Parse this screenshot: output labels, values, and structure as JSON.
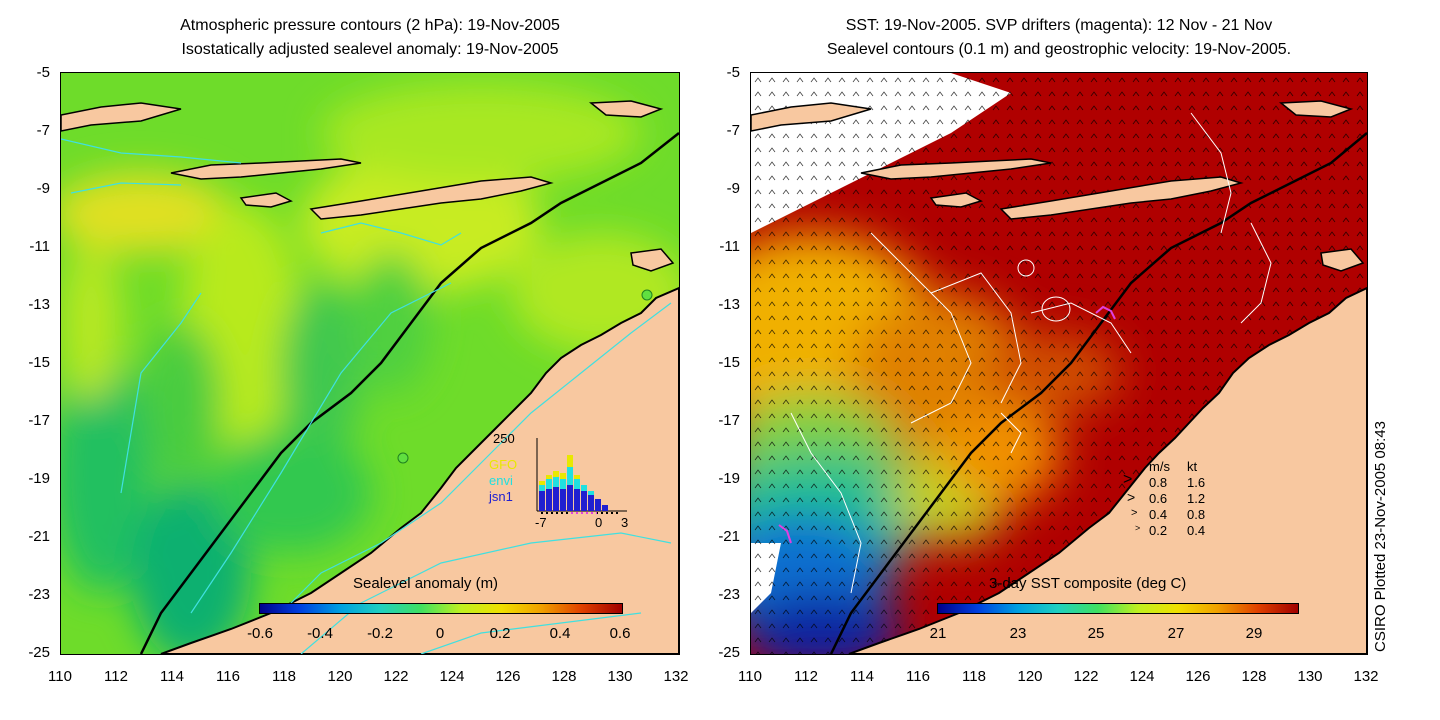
{
  "left_panel": {
    "title_line1": "Atmospheric pressure contours (2 hPa): 19-Nov-2005",
    "title_line2": "Isostatically adjusted sealevel anomaly: 19-Nov-2005",
    "colorbar_label": "Sealevel anomaly (m)",
    "colorbar_ticks": [
      "-0.6",
      "-0.4",
      "-0.2",
      "0",
      "0.2",
      "0.4",
      "0.6"
    ],
    "inset": {
      "ymax_label": "250",
      "x_ticks": [
        "-7",
        "0",
        "3"
      ],
      "legend": [
        {
          "label": "GFO",
          "color": "#e8e800"
        },
        {
          "label": "envi",
          "color": "#20e0e0"
        },
        {
          "label": "jsn1",
          "color": "#2020d0"
        }
      ]
    }
  },
  "right_panel": {
    "title_line1": "SST: 19-Nov-2005. SVP drifters (magenta): 12 Nov - 21 Nov",
    "title_line2": "Sealevel contours (0.1 m) and geostrophic velocity: 19-Nov-2005.",
    "colorbar_label": "3-day SST composite (deg C)",
    "colorbar_ticks": [
      "21",
      "23",
      "25",
      "27",
      "29"
    ],
    "velocity_legend": {
      "header_ms": "m/s",
      "header_kt": "kt",
      "rows": [
        {
          "ms": "0.8",
          "kt": "1.6"
        },
        {
          "ms": "0.6",
          "kt": "1.2"
        },
        {
          "ms": "0.4",
          "kt": "0.8"
        },
        {
          "ms": "0.2",
          "kt": "0.4"
        }
      ]
    }
  },
  "y_ticks": [
    "-5",
    "-7",
    "-9",
    "-11",
    "-13",
    "-15",
    "-17",
    "-19",
    "-21",
    "-23",
    "-25"
  ],
  "x_ticks": [
    "110",
    "112",
    "114",
    "116",
    "118",
    "120",
    "122",
    "124",
    "126",
    "128",
    "130",
    "132"
  ],
  "credit": "CSIRO Plotted 23-Nov-2005 08:43",
  "colors": {
    "land": "#f8c8a0",
    "contour_cyan": "#40e0e0",
    "drifter": "#e040e0"
  }
}
